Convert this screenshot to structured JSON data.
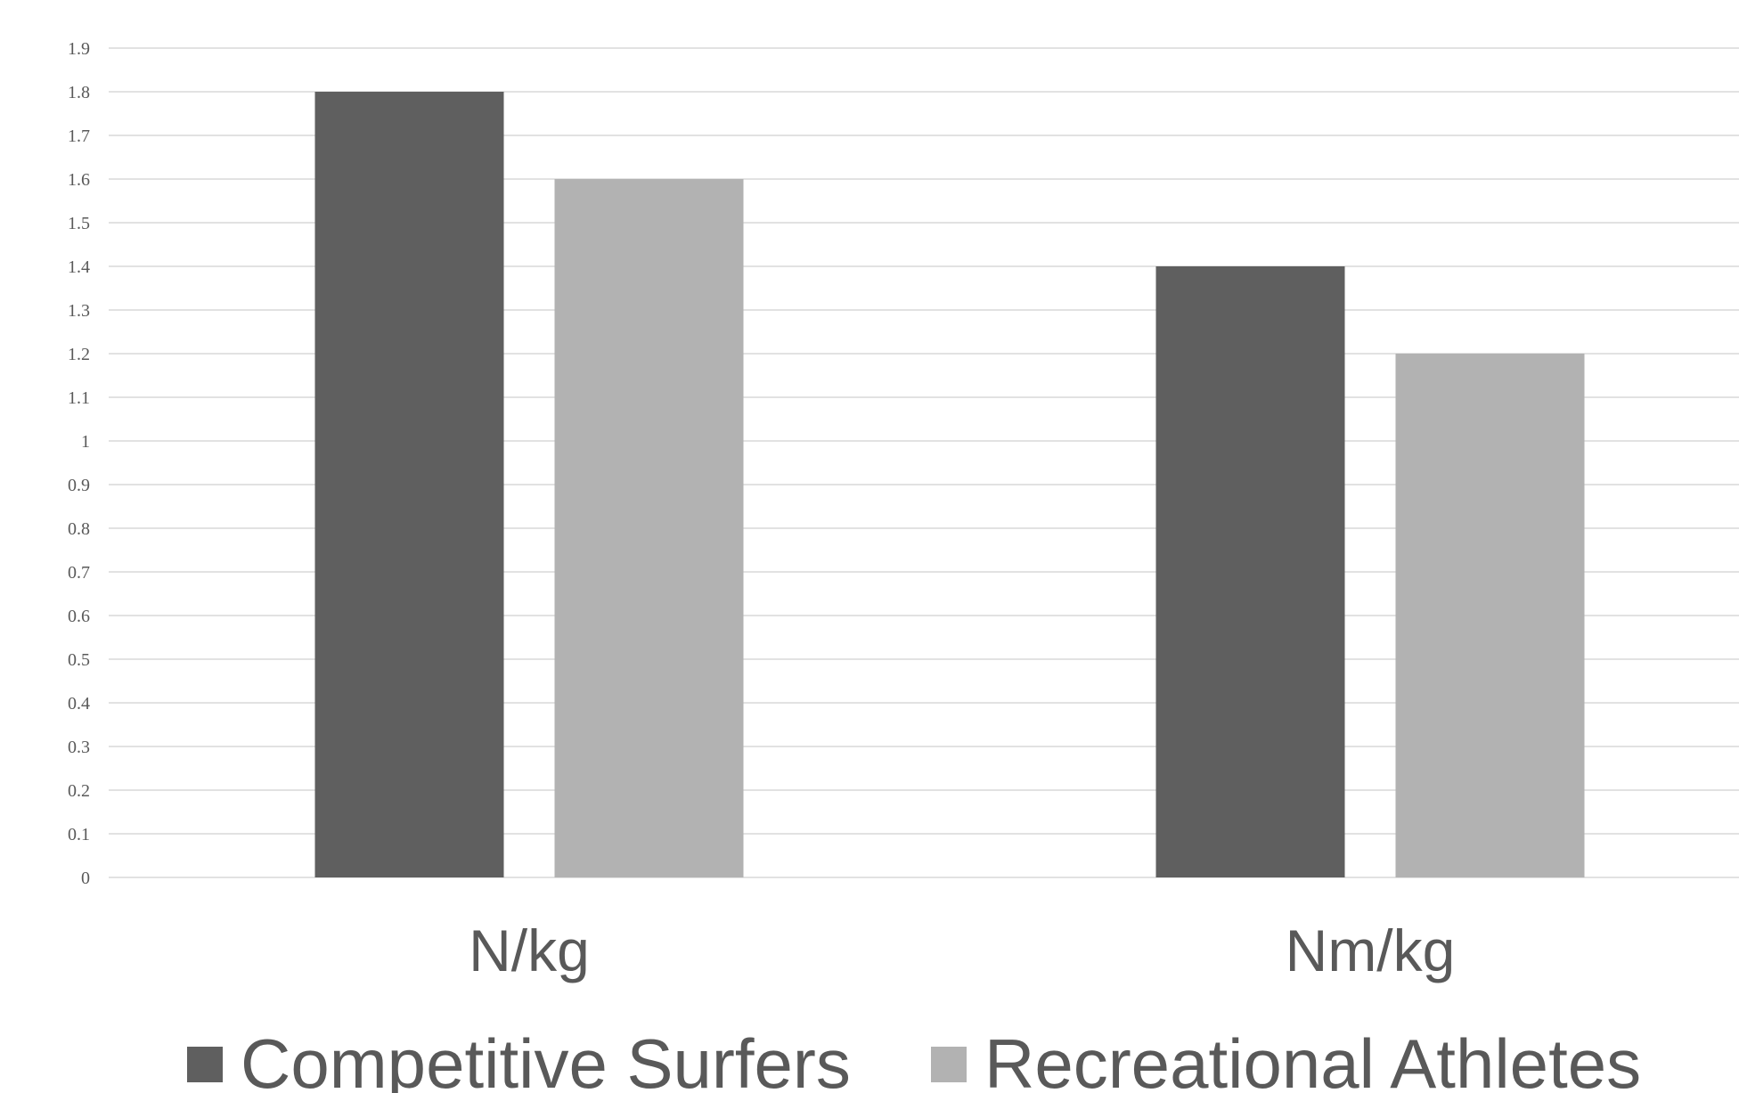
{
  "chart_data": {
    "type": "bar",
    "title": "",
    "xlabel": "",
    "ylabel": "",
    "categories": [
      "N/kg",
      "Nm/kg"
    ],
    "series": [
      {
        "name": "Competitive Surfers",
        "values": [
          1.8,
          1.4
        ],
        "color": "#5f5f5f"
      },
      {
        "name": "Recreational Athletes",
        "values": [
          1.6,
          1.2
        ],
        "color": "#b2b2b2"
      }
    ],
    "ylim": [
      0,
      1.9
    ],
    "yticks": [
      "0",
      "0.1",
      "0.2",
      "0.3",
      "0.4",
      "0.5",
      "0.6",
      "0.7",
      "0.8",
      "0.9",
      "1",
      "1.1",
      "1.2",
      "1.3",
      "1.4",
      "1.5",
      "1.6",
      "1.7",
      "1.8",
      "1.9"
    ],
    "grid": true,
    "legend_position": "bottom",
    "gridline_color": "#d9d9d9",
    "text_color": "#595959"
  }
}
